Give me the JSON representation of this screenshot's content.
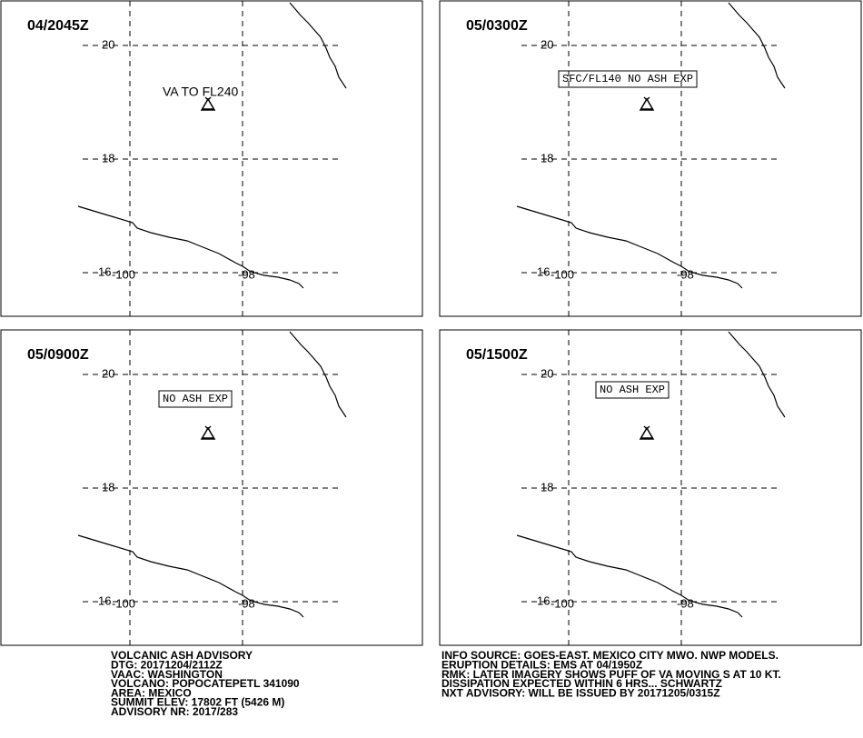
{
  "panels": [
    {
      "time": "04/2045Z",
      "annotation": "VA TO FL240",
      "lat_labels": [
        "20",
        "18",
        "16"
      ],
      "lon_labels": [
        "-100",
        "-98"
      ]
    },
    {
      "time": "05/0300Z",
      "annotation": "SFC/FL140 NO ASH EXP",
      "lat_labels": [
        "20",
        "18",
        "16"
      ],
      "lon_labels": [
        "-100",
        "-98"
      ]
    },
    {
      "time": "05/0900Z",
      "annotation": "NO ASH EXP",
      "lat_labels": [
        "20",
        "18",
        "16"
      ],
      "lon_labels": [
        "-100",
        "-98"
      ]
    },
    {
      "time": "05/1500Z",
      "annotation": "NO ASH EXP",
      "lat_labels": [
        "20",
        "18",
        "16"
      ],
      "lon_labels": [
        "-100",
        "-98"
      ]
    }
  ],
  "advisory_left": [
    "VOLCANIC ASH ADVISORY",
    "DTG: 20171204/2112Z",
    "VAAC: WASHINGTON",
    "VOLCANO: POPOCATEPETL 341090",
    "AREA: MEXICO",
    "SUMMIT ELEV: 17802 FT (5426 M)",
    "ADVISORY NR: 2017/283"
  ],
  "advisory_right": [
    "INFO SOURCE: GOES-EAST. MEXICO CITY MWO. NWP MODELS.",
    "ERUPTION DETAILS: EMS AT 04/1950Z",
    "RMK: LATER IMAGERY SHOWS PUFF OF VA MOVING S AT 10 KT.",
    "DISSIPATION EXPECTED WITHIN 6 HRS... SCHWARTZ",
    "NXT ADVISORY: WILL BE ISSUED BY 20171205/0315Z"
  ]
}
